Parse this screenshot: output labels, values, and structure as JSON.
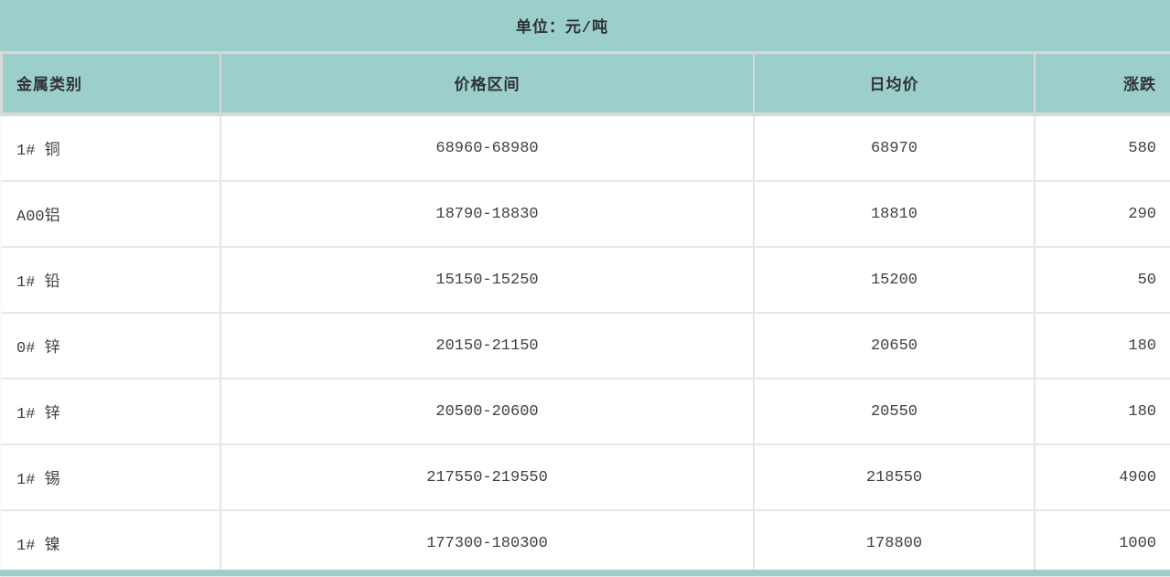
{
  "banner": {
    "unit_label": "单位：元/吨"
  },
  "colors": {
    "teal": "#9ccfcb",
    "header_border": "#d8d8d8",
    "row_border": "#e4e4e4",
    "header_text": "#2f3235",
    "data_text": "#3d4147"
  },
  "chart_data": {
    "type": "table",
    "title": "单位：元/吨",
    "columns": [
      {
        "key": "metal",
        "label": "金属类别",
        "align": "left"
      },
      {
        "key": "range",
        "label": "价格区间",
        "align": "center"
      },
      {
        "key": "avg",
        "label": "日均价",
        "align": "center"
      },
      {
        "key": "change",
        "label": "涨跌",
        "align": "right"
      }
    ],
    "rows": [
      {
        "metal": "1# 铜",
        "range": "68960-68980",
        "avg": "68970",
        "change": "580"
      },
      {
        "metal": "A00铝",
        "range": "18790-18830",
        "avg": "18810",
        "change": "290"
      },
      {
        "metal": "1# 铅",
        "range": "15150-15250",
        "avg": "15200",
        "change": "50"
      },
      {
        "metal": "0# 锌",
        "range": "20150-21150",
        "avg": "20650",
        "change": "180"
      },
      {
        "metal": "1# 锌",
        "range": "20500-20600",
        "avg": "20550",
        "change": "180"
      },
      {
        "metal": "1# 锡",
        "range": "217550-219550",
        "avg": "218550",
        "change": "4900"
      },
      {
        "metal": "1# 镍",
        "range": "177300-180300",
        "avg": "178800",
        "change": "1000"
      }
    ]
  }
}
